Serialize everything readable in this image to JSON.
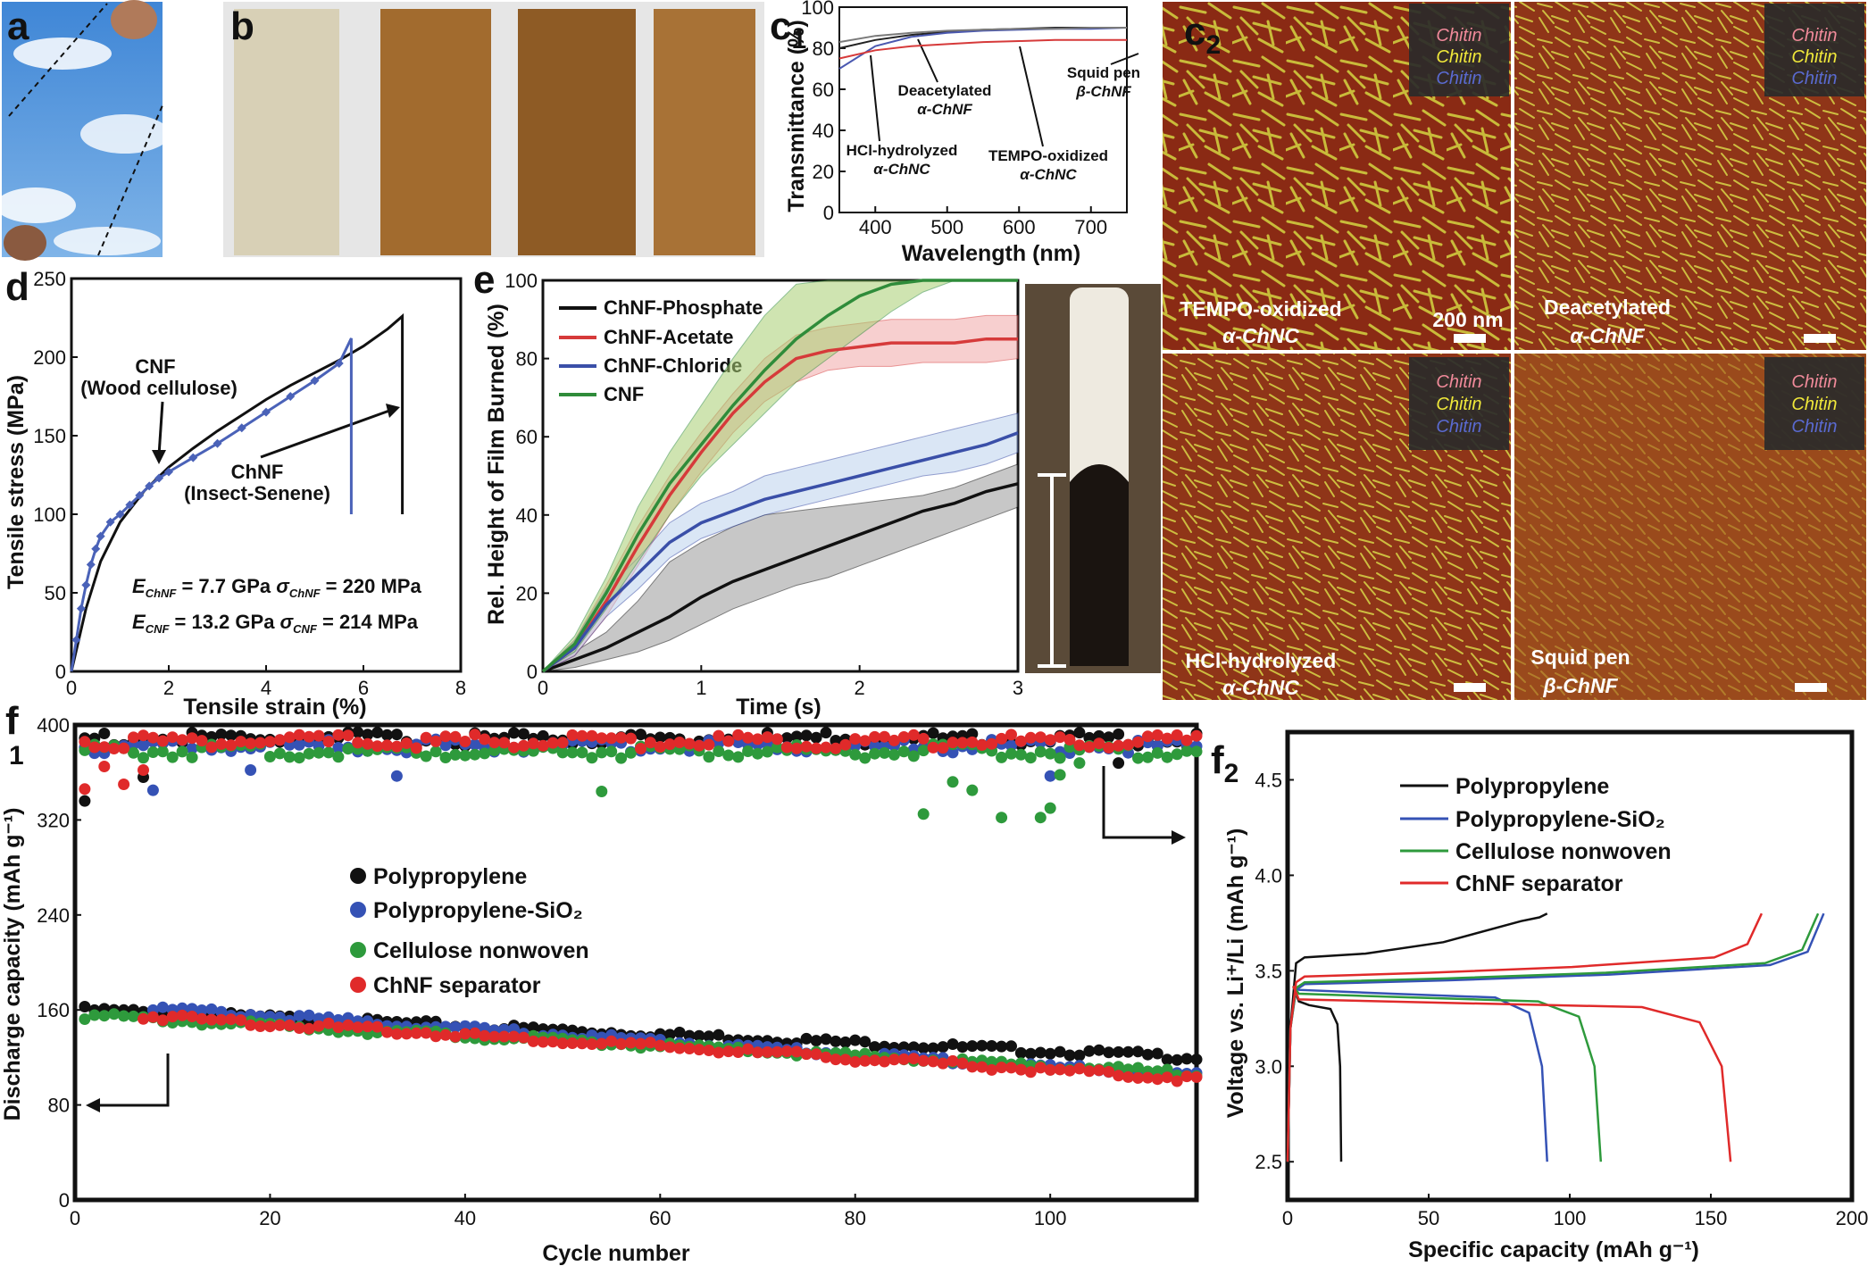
{
  "panels": {
    "a": "a",
    "b": "b",
    "c1": "c",
    "c1_sub": "1",
    "c2": "c",
    "c2_sub": "2",
    "d": "d",
    "e": "e",
    "f1": "f",
    "f1_sub": "1",
    "f2": "f",
    "f2_sub": "2"
  },
  "afm": {
    "tiles": [
      {
        "line1": "TEMPO-oxidized",
        "line2": "α-ChNC"
      },
      {
        "line1": "Deacetylated",
        "line2": "α-ChNF"
      },
      {
        "line1": "HCl-hydrolyzed",
        "line2": "α-ChNC"
      },
      {
        "line1": "Squid pen",
        "line2": "β-ChNF"
      }
    ],
    "scalebar": "200 nm",
    "inset_word": "Chitin",
    "colors": {
      "background": "#8a2a14",
      "fiber": "#c9bb3a"
    }
  },
  "chart_data": [
    {
      "id": "c1",
      "type": "line",
      "xlabel": "Wavelength (nm)",
      "ylabel": "Transmittance (%)",
      "xlim": [
        350,
        750
      ],
      "ylim": [
        0,
        100
      ],
      "xticks": [
        400,
        500,
        600,
        700
      ],
      "yticks": [
        0,
        20,
        40,
        60,
        80,
        100
      ],
      "annotations": [
        {
          "line1": "Deacetylated",
          "line2": "α-ChNF"
        },
        {
          "line1": "Squid pen",
          "line2": "β-ChNF"
        },
        {
          "line1": "HCl-hydrolyzed",
          "line2": "α-ChNC"
        },
        {
          "line1": "TEMPO-oxidized",
          "line2": "α-ChNC"
        }
      ],
      "series": [
        {
          "name": "HCl-hydrolyzed α-ChNC",
          "color": "#222222",
          "x": [
            350,
            400,
            450,
            500,
            550,
            600,
            650,
            700,
            750
          ],
          "y": [
            80,
            84,
            86.5,
            88,
            89,
            89.5,
            90,
            90,
            90
          ]
        },
        {
          "name": "Deacetylated α-ChNF",
          "color": "#4a58b0",
          "x": [
            350,
            400,
            450,
            500,
            550,
            600,
            650,
            700,
            750
          ],
          "y": [
            70,
            81,
            85.5,
            87.5,
            88.5,
            89,
            89.5,
            89.5,
            90
          ]
        },
        {
          "name": "Squid pen β-ChNF",
          "color": "#7a7a7a",
          "x": [
            350,
            400,
            450,
            500,
            550,
            600,
            650,
            700,
            750
          ],
          "y": [
            83,
            86,
            87.5,
            88.5,
            89,
            89.5,
            89.5,
            90,
            90
          ]
        },
        {
          "name": "TEMPO-oxidized α-ChNC",
          "color": "#d63a3a",
          "x": [
            350,
            400,
            450,
            500,
            550,
            600,
            650,
            700,
            750
          ],
          "y": [
            75,
            79,
            81,
            82,
            83,
            83.5,
            84,
            84,
            84
          ]
        }
      ]
    },
    {
      "id": "d",
      "type": "line",
      "xlabel": "Tensile strain (%)",
      "ylabel": "Tensile stress (MPa)",
      "xlim": [
        0,
        8
      ],
      "ylim": [
        0,
        250
      ],
      "xticks": [
        0,
        2,
        4,
        6,
        8
      ],
      "yticks": [
        0,
        50,
        100,
        150,
        200,
        250
      ],
      "labels": {
        "cnf_line1": "CNF",
        "cnf_line2": "(Wood cellulose)",
        "chnf_line1": "ChNF",
        "chnf_line2": "(Insect-Senene)",
        "eq_chnf": "E_ChNF = 7.7 GPa  σ_ChNF = 220 MPa",
        "eq_cnf": "E_CNF = 13.2 GPa  σ_CNF = 214 MPa",
        "e_chnf_main": "E",
        "e_chnf_sub": "ChNF",
        "e_chnf_val": " = 7.7 GPa ",
        "s_chnf_main": "σ",
        "s_chnf_sub": "ChNF",
        "s_chnf_val": " = 220 MPa",
        "e_cnf_main": "E",
        "e_cnf_sub": "CNF",
        "e_cnf_val": " = 13.2 GPa ",
        "s_cnf_main": "σ",
        "s_cnf_sub": "CNF",
        "s_cnf_val": " = 214 MPa"
      },
      "series": [
        {
          "name": "ChNF (Insect-Senene)",
          "color": "#111111",
          "x": [
            0,
            0.3,
            0.6,
            1,
            1.5,
            2,
            2.5,
            3,
            3.5,
            4,
            4.5,
            5,
            5.5,
            6,
            6.5,
            6.8,
            6.8
          ],
          "y": [
            0,
            40,
            70,
            95,
            115,
            130,
            142,
            153,
            163,
            173,
            182,
            190,
            198,
            207,
            218,
            226,
            100
          ]
        },
        {
          "name": "CNF (Wood cellulose)",
          "color": "#4a62b8",
          "x": [
            0,
            0.1,
            0.2,
            0.3,
            0.4,
            0.5,
            0.6,
            0.8,
            1,
            1.2,
            1.4,
            1.6,
            1.8,
            2,
            2.5,
            3,
            3.5,
            4,
            4.5,
            5,
            5.5,
            5.75,
            5.75
          ],
          "y": [
            0,
            20,
            40,
            55,
            68,
            78,
            86,
            95,
            100,
            106,
            112,
            118,
            123,
            127,
            136,
            145,
            155,
            165,
            175,
            185,
            196,
            212,
            100
          ]
        }
      ]
    },
    {
      "id": "e",
      "type": "line",
      "xlabel": "Time (s)",
      "ylabel": "Rel. Height of Film Burned (%)",
      "xlim": [
        0,
        3
      ],
      "ylim": [
        0,
        100
      ],
      "xticks": [
        0,
        1,
        2,
        3
      ],
      "yticks": [
        0,
        20,
        40,
        60,
        80,
        100
      ],
      "series": [
        {
          "name": "ChNF-Phosphate",
          "color": "#111111",
          "band": "#9a9a9a",
          "x": [
            0,
            0.2,
            0.4,
            0.6,
            0.8,
            1,
            1.2,
            1.4,
            1.6,
            1.8,
            2,
            2.2,
            2.4,
            2.6,
            2.8,
            3
          ],
          "y": [
            0,
            3,
            6,
            10,
            14,
            19,
            23,
            26,
            29,
            32,
            35,
            38,
            41,
            43,
            46,
            48
          ],
          "lo": [
            0,
            1,
            3,
            5,
            8,
            12,
            16,
            19,
            22,
            24,
            27,
            30,
            33,
            36,
            39,
            42
          ],
          "hi": [
            0,
            5,
            10,
            18,
            28,
            33,
            37,
            40,
            41,
            42,
            43,
            44,
            45,
            47,
            50,
            53
          ]
        },
        {
          "name": "ChNF-Acetate",
          "color": "#d63a3a",
          "band": "#f2a8a8",
          "x": [
            0,
            0.2,
            0.4,
            0.6,
            0.8,
            1,
            1.2,
            1.4,
            1.6,
            1.8,
            2,
            2.2,
            2.4,
            2.6,
            2.8,
            3
          ],
          "y": [
            0,
            6,
            18,
            32,
            45,
            56,
            66,
            74,
            80,
            82,
            83,
            84,
            84,
            84,
            85,
            85
          ],
          "lo": [
            0,
            4,
            14,
            27,
            40,
            51,
            61,
            69,
            74,
            77,
            78,
            78,
            79,
            79,
            79,
            80
          ],
          "hi": [
            0,
            8,
            22,
            37,
            50,
            61,
            71,
            80,
            86,
            88,
            89,
            90,
            90,
            90,
            91,
            91
          ]
        },
        {
          "name": "ChNF-Chloride",
          "color": "#3a4fa8",
          "band": "#bcd2ee",
          "x": [
            0,
            0.2,
            0.4,
            0.6,
            0.8,
            1,
            1.2,
            1.4,
            1.6,
            1.8,
            2,
            2.2,
            2.4,
            2.6,
            2.8,
            3
          ],
          "y": [
            0,
            6,
            17,
            25,
            33,
            38,
            41,
            44,
            46,
            48,
            50,
            52,
            54,
            56,
            58,
            61
          ],
          "lo": [
            0,
            4,
            14,
            21,
            29,
            34,
            37,
            40,
            42,
            44,
            46,
            48,
            50,
            51,
            53,
            56
          ],
          "hi": [
            0,
            8,
            21,
            29,
            38,
            43,
            46,
            50,
            52,
            54,
            56,
            58,
            60,
            62,
            64,
            66
          ]
        },
        {
          "name": "CNF",
          "color": "#2f8c3a",
          "band": "#a9cf73",
          "x": [
            0,
            0.2,
            0.4,
            0.6,
            0.8,
            1,
            1.2,
            1.4,
            1.6,
            1.8,
            2,
            2.2,
            2.4,
            2.6,
            2.8,
            3
          ],
          "y": [
            0,
            7,
            20,
            35,
            48,
            58,
            68,
            77,
            85,
            91,
            96,
            99,
            100,
            100,
            100,
            100
          ],
          "lo": [
            0,
            5,
            16,
            28,
            40,
            50,
            58,
            66,
            74,
            80,
            86,
            92,
            97,
            100,
            100,
            100
          ],
          "hi": [
            0,
            9,
            24,
            42,
            56,
            68,
            80,
            91,
            99,
            100,
            100,
            100,
            100,
            100,
            100,
            100
          ]
        }
      ]
    },
    {
      "id": "f1",
      "type": "scatter",
      "xlabel": "Cycle number",
      "ylabel": "Discharge capacity (mAh g⁻¹)",
      "xlim": [
        0,
        115
      ],
      "ylim": [
        0,
        400
      ],
      "xticks": [
        0,
        20,
        40,
        60,
        80,
        100
      ],
      "yticks": [
        0,
        80,
        160,
        240,
        320,
        400
      ],
      "legend": [
        "Polypropylene",
        "Polypropylene-SiO₂",
        "Cellulose nonwoven",
        "ChNF separator"
      ],
      "series": [
        {
          "name": "Polypropylene",
          "color": "#111111",
          "capacity_start": 160,
          "capacity_end": 120,
          "upper": 388,
          "outliers": [
            [
              1,
              336
            ],
            [
              7,
              356
            ],
            [
              107,
              368
            ]
          ]
        },
        {
          "name": "Polypropylene-SiO₂",
          "color": "#3552b5",
          "capacity_start": 165,
          "capacity_end": 104,
          "upper": 382,
          "outliers": [
            [
              8,
              345
            ],
            [
              18,
              362
            ],
            [
              33,
              357
            ],
            [
              100,
              357
            ]
          ]
        },
        {
          "name": "Cellulose nonwoven",
          "color": "#2e9a3c",
          "capacity_start": 155,
          "capacity_end": 106,
          "upper": 378,
          "outliers": [
            [
              54,
              344
            ],
            [
              87,
              325
            ],
            [
              90,
              352
            ],
            [
              92,
              345
            ],
            [
              95,
              322
            ],
            [
              99,
              322
            ],
            [
              100,
              330
            ],
            [
              101,
              358
            ],
            [
              103,
              368
            ]
          ]
        },
        {
          "name": "ChNF separator",
          "color": "#e02a2a",
          "capacity_start": 158,
          "capacity_end": 102,
          "upper": 386,
          "outliers": [
            [
              1,
              346
            ],
            [
              3,
              365
            ],
            [
              5,
              350
            ],
            [
              7,
              362
            ]
          ]
        }
      ]
    },
    {
      "id": "f2",
      "type": "line",
      "xlabel": "Specific capacity (mAh g⁻¹)",
      "ylabel": "Voltage vs. Li⁺/Li (mAh g⁻¹)",
      "xlim": [
        0,
        200
      ],
      "ylim": [
        2.3,
        4.75
      ],
      "xticks": [
        0,
        50,
        100,
        150,
        200
      ],
      "yticks": [
        2.5,
        3.0,
        3.5,
        4.0,
        4.5
      ],
      "legend": [
        "Polypropylene",
        "Polypropylene-SiO₂",
        "Cellulose nonwoven",
        "ChNF separator"
      ],
      "series": [
        {
          "name": "Polypropylene",
          "color": "#111111",
          "charge_end": 92,
          "charge_v": 3.8,
          "charge_plateau": 3.57,
          "discharge_end": 19,
          "discharge_plateau": 3.32
        },
        {
          "name": "Polypropylene-SiO₂",
          "color": "#3552b5",
          "charge_end": 190,
          "charge_v": 3.8,
          "charge_plateau": 3.43,
          "discharge_end": 92,
          "discharge_plateau": 3.38
        },
        {
          "name": "Cellulose nonwoven",
          "color": "#2e9a3c",
          "charge_end": 188,
          "charge_v": 3.8,
          "charge_plateau": 3.44,
          "discharge_end": 111,
          "discharge_plateau": 3.36
        },
        {
          "name": "ChNF separator",
          "color": "#e02a2a",
          "charge_end": 168,
          "charge_v": 3.8,
          "charge_plateau": 3.47,
          "discharge_end": 157,
          "discharge_plateau": 3.33
        }
      ]
    }
  ]
}
